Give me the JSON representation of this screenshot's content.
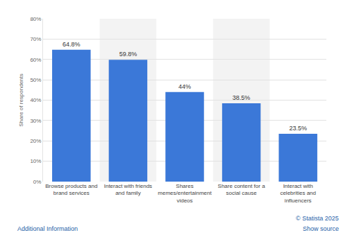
{
  "chart_data": {
    "type": "bar",
    "y_label": "Share of respondents",
    "categories": [
      "Browse products and brand services",
      "Interact with friends and family",
      "Shares memes/entertainment videos",
      "Share content for a social cause",
      "Interact with celebrities and influencers"
    ],
    "values": [
      64.8,
      59.8,
      44,
      38.5,
      23.5
    ],
    "value_labels": [
      "64.8%",
      "59.8%",
      "44%",
      "38.5%",
      "23.5%"
    ],
    "color": "#3b78d8",
    "ylim": [
      0,
      80
    ],
    "yticks": [
      {
        "value": 0,
        "label": "0%"
      },
      {
        "value": 10,
        "label": "10%"
      },
      {
        "value": 20,
        "label": "20%"
      },
      {
        "value": 30,
        "label": "30%"
      },
      {
        "value": 40,
        "label": "40%"
      },
      {
        "value": 50,
        "label": "50%"
      },
      {
        "value": 60,
        "label": "60%"
      },
      {
        "value": 70,
        "label": "70%"
      },
      {
        "value": 80,
        "label": "80%"
      }
    ],
    "grid": true,
    "data_labels": true,
    "annotations": [
      "Additional Information",
      "© Statista 2025",
      "Show source"
    ]
  }
}
